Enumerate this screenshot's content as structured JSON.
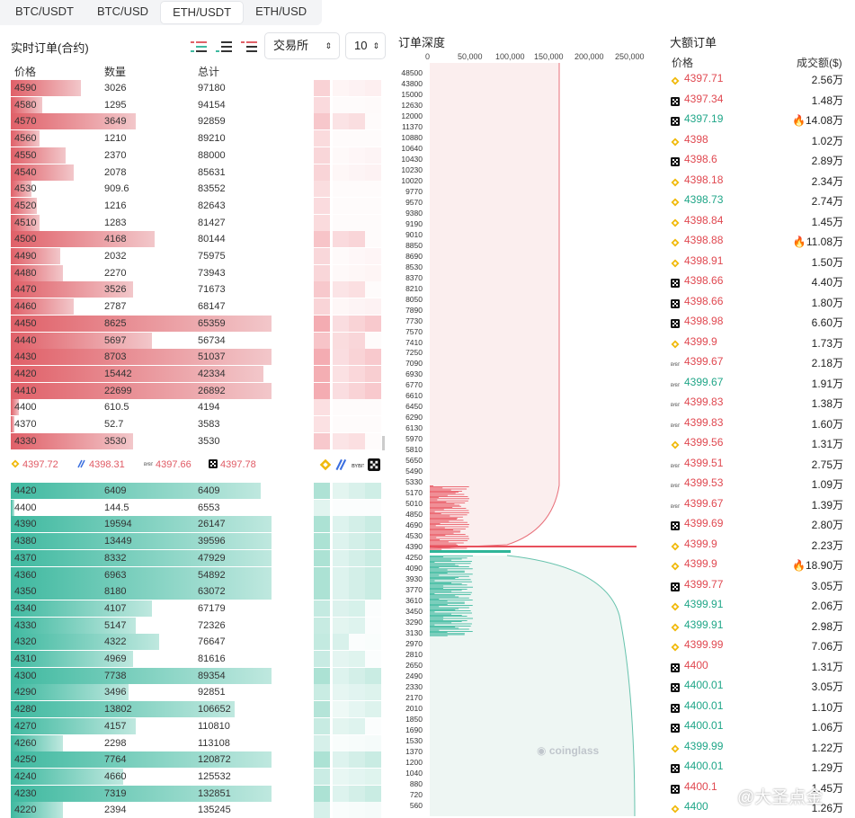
{
  "tabs": [
    "BTC/USDT",
    "BTC/USD",
    "ETH/USDT",
    "ETH/USD"
  ],
  "active_tab": 2,
  "orders": {
    "title": "实时订单(合约)",
    "exchange_select": "交易所",
    "step_select": "10",
    "headers": [
      "价格",
      "数量",
      "总计"
    ]
  },
  "asks": [
    [
      "4590",
      "3026",
      "97180",
      0.27
    ],
    [
      "4580",
      "1295",
      "94154",
      0.12
    ],
    [
      "4570",
      "3649",
      "92859",
      0.48
    ],
    [
      "4560",
      "1210",
      "89210",
      0.11
    ],
    [
      "4550",
      "2370",
      "88000",
      0.21
    ],
    [
      "4540",
      "2078",
      "85631",
      0.24
    ],
    [
      "4530",
      "909.6",
      "83552",
      0.08
    ],
    [
      "4520",
      "1216",
      "82643",
      0.1
    ],
    [
      "4510",
      "1283",
      "81427",
      0.11
    ],
    [
      "4500",
      "4168",
      "80144",
      0.55
    ],
    [
      "4490",
      "2032",
      "75975",
      0.19
    ],
    [
      "4480",
      "2270",
      "73943",
      0.2
    ],
    [
      "4470",
      "3526",
      "71673",
      0.47
    ],
    [
      "4460",
      "2787",
      "68147",
      0.24
    ],
    [
      "4450",
      "8625",
      "65359",
      1.0
    ],
    [
      "4440",
      "5697",
      "56734",
      0.54
    ],
    [
      "4430",
      "8703",
      "51037",
      1.0
    ],
    [
      "4420",
      "15442",
      "42334",
      0.97
    ],
    [
      "4410",
      "22699",
      "26892",
      1.0
    ],
    [
      "4400",
      "610.5",
      "4194",
      0.03
    ],
    [
      "4370",
      "52.7",
      "3583",
      0.0
    ],
    [
      "4330",
      "3530",
      "3530",
      0.47
    ]
  ],
  "mid_prices": [
    "4397.72",
    "4398.31",
    "4397.66",
    "4397.78"
  ],
  "bids": [
    [
      "4420",
      "6409",
      "6409",
      0.96
    ],
    [
      "4400",
      "144.5",
      "6553",
      0.0
    ],
    [
      "4390",
      "19594",
      "26147",
      1.0
    ],
    [
      "4380",
      "13449",
      "39596",
      1.0
    ],
    [
      "4370",
      "8332",
      "47929",
      1.0
    ],
    [
      "4360",
      "6963",
      "54892",
      1.0
    ],
    [
      "4350",
      "8180",
      "63072",
      1.0
    ],
    [
      "4340",
      "4107",
      "67179",
      0.54
    ],
    [
      "4330",
      "5147",
      "72326",
      0.48
    ],
    [
      "4320",
      "4322",
      "76647",
      0.57
    ],
    [
      "4310",
      "4969",
      "81616",
      0.47
    ],
    [
      "4300",
      "7738",
      "89354",
      1.0
    ],
    [
      "4290",
      "3496",
      "92851",
      0.45
    ],
    [
      "4280",
      "13802",
      "106652",
      0.86
    ],
    [
      "4270",
      "4157",
      "110810",
      0.48
    ],
    [
      "4260",
      "2298",
      "113108",
      0.2
    ],
    [
      "4250",
      "7764",
      "120872",
      1.0
    ],
    [
      "4240",
      "4660",
      "125532",
      0.43
    ],
    [
      "4230",
      "7319",
      "132851",
      1.0
    ],
    [
      "4220",
      "2394",
      "135245",
      0.2
    ]
  ],
  "depth": {
    "title": "订单深度",
    "ticks": [
      "0",
      "50,000",
      "100,000",
      "150,000",
      "200,000",
      "250,000"
    ],
    "price_labels": [
      "48500",
      "43800",
      "15000",
      "12630",
      "12000",
      "11370",
      "10880",
      "10640",
      "10430",
      "10230",
      "10020",
      "9770",
      "9570",
      "9380",
      "9190",
      "9010",
      "8850",
      "8690",
      "8530",
      "8370",
      "8210",
      "8050",
      "7890",
      "7730",
      "7570",
      "7410",
      "7250",
      "7090",
      "6930",
      "6770",
      "6610",
      "6450",
      "6290",
      "6130",
      "5970",
      "5810",
      "5650",
      "5490",
      "5330",
      "5170",
      "5010",
      "4850",
      "4690",
      "4530",
      "4390",
      "4250",
      "4090",
      "3930",
      "3770",
      "3610",
      "3450",
      "3290",
      "3130",
      "2970",
      "2810",
      "2650",
      "2490",
      "2330",
      "2170",
      "2010",
      "1850",
      "1690",
      "1530",
      "1370",
      "1200",
      "1040",
      "880",
      "720",
      "560"
    ],
    "watermark": "coinglass"
  },
  "large": {
    "title": "大额订单",
    "headers": [
      "价格",
      "成交额($)"
    ],
    "rows": [
      [
        "binance",
        "4397.71",
        "red",
        "2.56万",
        ""
      ],
      [
        "okx",
        "4397.34",
        "red",
        "1.48万",
        ""
      ],
      [
        "okx",
        "4397.19",
        "grn",
        "14.08万",
        "fire"
      ],
      [
        "binance",
        "4398",
        "red",
        "1.02万",
        ""
      ],
      [
        "okx",
        "4398.6",
        "red",
        "2.89万",
        ""
      ],
      [
        "binance",
        "4398.18",
        "red",
        "2.34万",
        ""
      ],
      [
        "binance",
        "4398.73",
        "grn",
        "2.74万",
        ""
      ],
      [
        "binance",
        "4398.84",
        "red",
        "1.45万",
        ""
      ],
      [
        "binance",
        "4398.88",
        "red",
        "11.08万",
        "fire"
      ],
      [
        "binance",
        "4398.91",
        "red",
        "1.50万",
        ""
      ],
      [
        "okx",
        "4398.66",
        "red",
        "4.40万",
        ""
      ],
      [
        "okx",
        "4398.66",
        "red",
        "1.80万",
        ""
      ],
      [
        "okx",
        "4398.98",
        "red",
        "6.60万",
        ""
      ],
      [
        "binance",
        "4399.9",
        "red",
        "1.73万",
        ""
      ],
      [
        "bybit",
        "4399.67",
        "red",
        "2.18万",
        ""
      ],
      [
        "bybit",
        "4399.67",
        "grn",
        "1.91万",
        ""
      ],
      [
        "bybit",
        "4399.83",
        "red",
        "1.38万",
        ""
      ],
      [
        "bybit",
        "4399.83",
        "red",
        "1.60万",
        ""
      ],
      [
        "binance",
        "4399.56",
        "red",
        "1.31万",
        ""
      ],
      [
        "bybit",
        "4399.51",
        "red",
        "2.75万",
        ""
      ],
      [
        "bybit",
        "4399.53",
        "red",
        "1.09万",
        ""
      ],
      [
        "bybit",
        "4399.67",
        "red",
        "1.39万",
        ""
      ],
      [
        "okx",
        "4399.69",
        "red",
        "2.80万",
        ""
      ],
      [
        "binance",
        "4399.9",
        "red",
        "2.23万",
        ""
      ],
      [
        "binance",
        "4399.9",
        "red",
        "18.90万",
        "fire"
      ],
      [
        "okx",
        "4399.77",
        "red",
        "3.05万",
        ""
      ],
      [
        "binance",
        "4399.91",
        "grn",
        "2.06万",
        ""
      ],
      [
        "binance",
        "4399.91",
        "grn",
        "2.98万",
        ""
      ],
      [
        "binance",
        "4399.99",
        "red",
        "7.06万",
        ""
      ],
      [
        "okx",
        "4400",
        "red",
        "1.31万",
        ""
      ],
      [
        "okx",
        "4400.01",
        "grn",
        "3.05万",
        ""
      ],
      [
        "okx",
        "4400.01",
        "grn",
        "1.10万",
        ""
      ],
      [
        "okx",
        "4400.01",
        "grn",
        "1.06万",
        ""
      ],
      [
        "binance",
        "4399.99",
        "grn",
        "1.22万",
        ""
      ],
      [
        "okx",
        "4400.01",
        "grn",
        "1.29万",
        ""
      ],
      [
        "okx",
        "4400.1",
        "red",
        "1.45万",
        ""
      ],
      [
        "binance",
        "4400",
        "grn",
        "1.26万",
        ""
      ]
    ]
  },
  "corner_watermark": "@大圣点金",
  "colors": {
    "ask": "#e06068",
    "bid": "#3fb9a0",
    "binance": "#f0b90b",
    "okx": "#111111"
  }
}
